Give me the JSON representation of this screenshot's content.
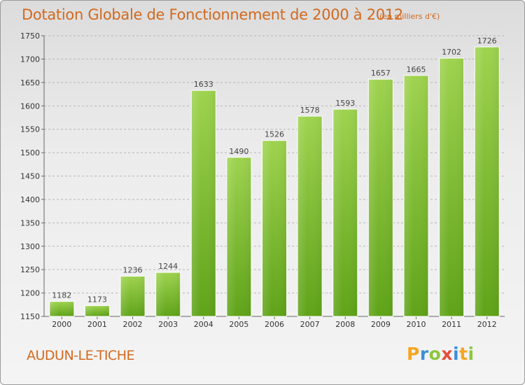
{
  "title": "Dotation Globale de Fonctionnement de 2000 à 2012",
  "unit_note": "(en milliers d'€)",
  "commune": "AUDUN-LE-TICHE",
  "logo": {
    "letters": [
      "P",
      "r",
      "o",
      "x",
      "i",
      "t",
      "i"
    ],
    "colors": [
      "#f5a623",
      "#3b8fd9",
      "#8cc63f",
      "#e74c3c",
      "#3b8fd9",
      "#f5a623",
      "#8cc63f"
    ]
  },
  "chart_data": {
    "type": "bar",
    "categories": [
      "2000",
      "2001",
      "2002",
      "2003",
      "2004",
      "2005",
      "2006",
      "2007",
      "2008",
      "2009",
      "2010",
      "2011",
      "2012"
    ],
    "values": [
      1182,
      1173,
      1236,
      1244,
      1633,
      1490,
      1526,
      1578,
      1593,
      1657,
      1665,
      1702,
      1726
    ],
    "ylim": [
      1150,
      1750
    ],
    "yticks": [
      1150,
      1200,
      1250,
      1300,
      1350,
      1400,
      1450,
      1500,
      1550,
      1600,
      1650,
      1700,
      1750
    ],
    "grid": "horizontal dashed",
    "bar_color": "#7dc242"
  }
}
